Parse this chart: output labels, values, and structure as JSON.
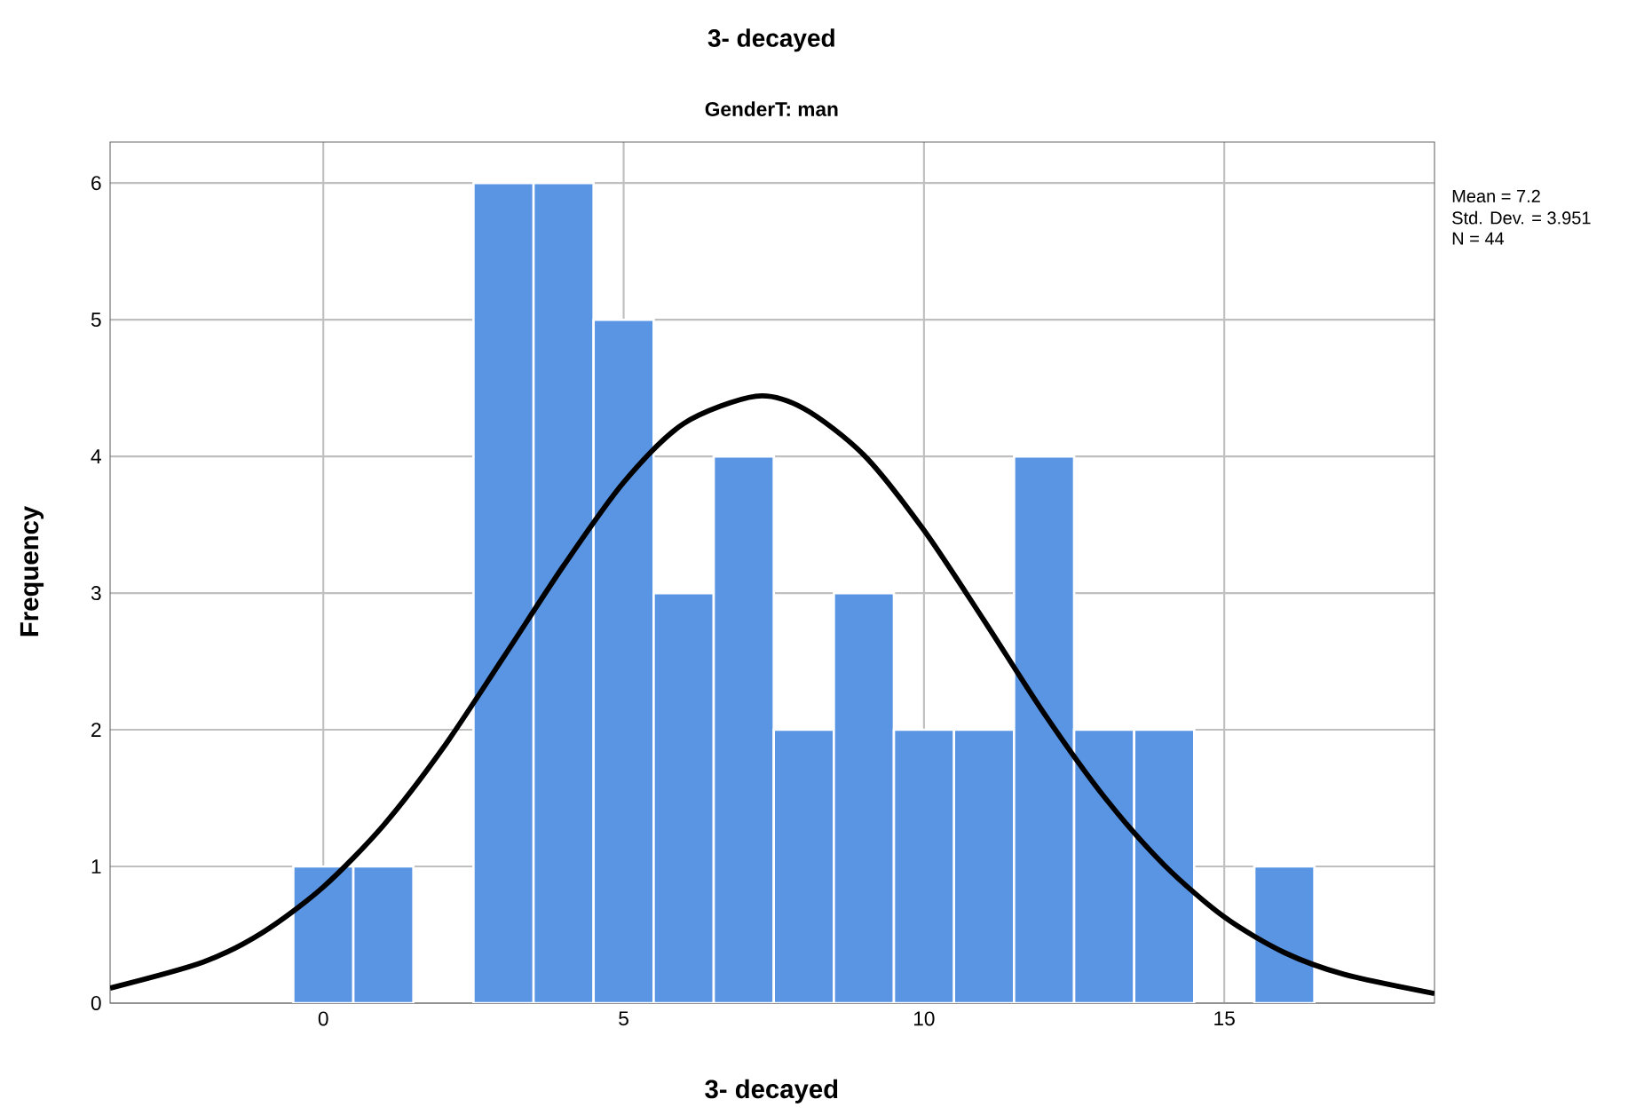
{
  "chart_data": {
    "type": "histogram",
    "title": "3- decayed",
    "subtitle": "GenderT: man",
    "xlabel": "3- decayed",
    "ylabel": "Frequency",
    "bins": [
      -0.5,
      0.5,
      1.5,
      2.5,
      3.5,
      4.5,
      5.5,
      6.5,
      7.5,
      8.5,
      9.5,
      10.5,
      11.5,
      12.5,
      13.5,
      14.5,
      15.5,
      16.5
    ],
    "values": [
      1,
      1,
      0,
      6,
      6,
      5,
      3,
      4,
      2,
      3,
      2,
      2,
      4,
      2,
      2,
      0,
      1
    ],
    "color": "#5a95e4",
    "series": [
      {
        "type": "line",
        "color": "#000000",
        "x": [
          -3.55,
          -2,
          -1,
          0,
          1,
          2,
          3,
          4,
          5,
          6,
          7.2,
          8,
          9,
          10,
          11,
          12,
          13,
          14,
          15,
          16,
          17,
          18.5
        ],
        "values": [
          0.11,
          0.3,
          0.52,
          0.85,
          1.3,
          1.87,
          2.53,
          3.2,
          3.81,
          4.24,
          4.44,
          4.35,
          4.01,
          3.46,
          2.8,
          2.12,
          1.51,
          1.01,
          0.63,
          0.37,
          0.21,
          0.07
        ]
      }
    ],
    "xlim": [
      -3.55,
      18.5
    ],
    "ylim": [
      0,
      6.3
    ],
    "xticks": [
      0,
      5,
      10,
      15
    ],
    "yticks": [
      0,
      1,
      2,
      3,
      4,
      5,
      6
    ],
    "grid": true,
    "annotations": [
      "Mean = 7.2",
      "Std. Dev. = 3.951",
      "N = 44"
    ]
  }
}
